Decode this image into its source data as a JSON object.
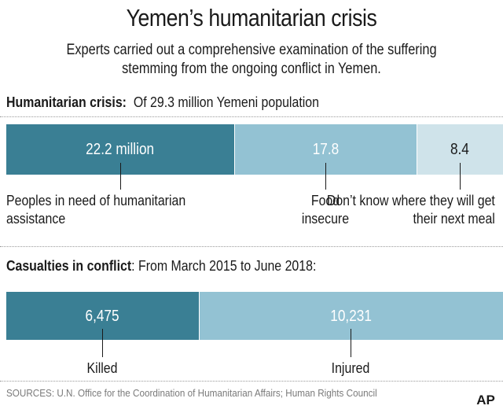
{
  "header": {
    "title": "Yemen’s humanitarian crisis",
    "subtitle_line1": "Experts carried out a comprehensive examination of the suffering",
    "subtitle_line2": "stemming from the ongoing conflict in Yemen."
  },
  "colors": {
    "dark_teal": "#3a7f94",
    "light_blue": "#93c2d3",
    "pale_blue": "#cfe3ea"
  },
  "chart_data": [
    {
      "type": "bar",
      "stacked": true,
      "orientation": "horizontal",
      "heading_bold": "Humanitarian crisis:",
      "heading_rest": "Of 29.3 million Yemeni population",
      "total": 29.3,
      "units": "million",
      "segments": [
        {
          "value": 22.2,
          "label": "22.2 million",
          "category_line1": "Peoples in need of humanitarian",
          "category_line2": "assistance",
          "color": "#3a7f94",
          "label_color": "#ffffff"
        },
        {
          "value": 17.8,
          "label": "17.8",
          "category_line1": "Food",
          "category_line2": "insecure",
          "color": "#93c2d3",
          "label_color": "#ffffff"
        },
        {
          "value": 8.4,
          "label": "8.4",
          "category_line1": "Don’t know where they will get",
          "category_line2": "their next meal",
          "color": "#cfe3ea",
          "label_color": "#1a1a1a"
        }
      ]
    },
    {
      "type": "bar",
      "stacked": true,
      "orientation": "horizontal",
      "heading_bold": "Casualties in conflict",
      "heading_rest": ": From March 2015 to June 2018:",
      "segments": [
        {
          "value": 6475,
          "label": "6,475",
          "category_line1": "Killed",
          "color": "#3a7f94",
          "label_color": "#ffffff"
        },
        {
          "value": 10231,
          "label": "10,231",
          "category_line1": "Injured",
          "color": "#93c2d3",
          "label_color": "#ffffff"
        }
      ]
    }
  ],
  "footer": {
    "sources": "SOURCES: U.N. Office for the Coordination of Humanitarian Affairs; Human Rights Council",
    "logo_text": "AP"
  }
}
